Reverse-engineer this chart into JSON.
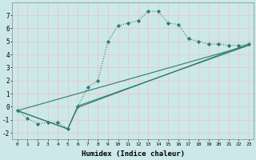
{
  "xlabel": "Humidex (Indice chaleur)",
  "bg_color": "#cce8e8",
  "grid_color": "#e8c8c8",
  "line_color": "#2e7d6e",
  "xlim": [
    -0.5,
    23.5
  ],
  "ylim": [
    -2.5,
    8.0
  ],
  "xticks": [
    0,
    1,
    2,
    3,
    4,
    5,
    6,
    7,
    8,
    9,
    10,
    11,
    12,
    13,
    14,
    15,
    16,
    17,
    18,
    19,
    20,
    21,
    22,
    23
  ],
  "yticks": [
    -2,
    -1,
    0,
    1,
    2,
    3,
    4,
    5,
    6,
    7
  ],
  "series1_x": [
    0,
    1,
    2,
    3,
    4,
    5,
    6,
    7,
    8,
    9,
    10,
    11,
    12,
    13,
    14,
    15,
    16,
    17,
    18,
    19,
    20,
    21,
    22,
    23
  ],
  "series1_y": [
    -0.3,
    -0.9,
    -1.3,
    -1.2,
    -1.2,
    -1.7,
    0.0,
    1.5,
    2.0,
    5.0,
    6.2,
    6.4,
    6.6,
    7.3,
    7.3,
    6.4,
    6.3,
    5.2,
    5.0,
    4.8,
    4.8,
    4.7,
    4.7,
    4.8
  ],
  "series2_x": [
    0,
    23
  ],
  "series2_y": [
    -0.3,
    4.7
  ],
  "series3_x": [
    0,
    5,
    6,
    23
  ],
  "series3_y": [
    -0.3,
    -1.7,
    -0.05,
    4.8
  ],
  "series4_x": [
    0,
    5,
    6,
    23
  ],
  "series4_y": [
    -0.3,
    -1.7,
    0.05,
    4.7
  ]
}
